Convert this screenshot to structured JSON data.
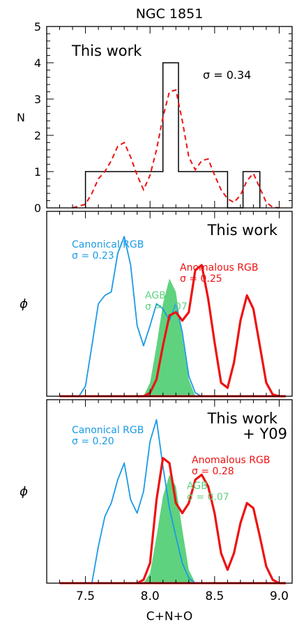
{
  "figure": {
    "title": "NGC 1851",
    "xlabel": "C+N+O",
    "x_ticks": [
      "7.5",
      "8.0",
      "8.5",
      "9.0"
    ]
  },
  "colors": {
    "black": "#000000",
    "red": "#ee1111",
    "blue": "#1a9ae6",
    "green": "#5fd27f"
  },
  "chart_data": [
    {
      "type": "bar",
      "panel": "top",
      "annotation": "This work",
      "sigma_label": "σ = 0.34",
      "ylabel": "N",
      "ylim": [
        0,
        5
      ],
      "xlim": [
        7.2,
        9.1
      ],
      "y_ticks": [
        "0",
        "1",
        "2",
        "3",
        "4",
        "5"
      ],
      "bins": [
        {
          "x0": 7.5,
          "x1": 7.6,
          "count": 1
        },
        {
          "x0": 7.6,
          "x1": 7.7,
          "count": 1
        },
        {
          "x0": 7.7,
          "x1": 7.8,
          "count": 1
        },
        {
          "x0": 7.8,
          "x1": 7.9,
          "count": 1
        },
        {
          "x0": 7.9,
          "x1": 8.0,
          "count": 1
        },
        {
          "x0": 8.0,
          "x1": 8.1,
          "count": 1
        },
        {
          "x0": 8.1,
          "x1": 8.22,
          "count": 4
        },
        {
          "x0": 8.22,
          "x1": 8.35,
          "count": 1
        },
        {
          "x0": 8.35,
          "x1": 8.47,
          "count": 1
        },
        {
          "x0": 8.47,
          "x1": 8.6,
          "count": 1
        },
        {
          "x0": 8.6,
          "x1": 8.72,
          "count": 0
        },
        {
          "x0": 8.72,
          "x1": 8.85,
          "count": 1
        }
      ],
      "kde": {
        "x": [
          7.4,
          7.5,
          7.55,
          7.6,
          7.65,
          7.7,
          7.75,
          7.8,
          7.85,
          7.9,
          7.95,
          8.0,
          8.05,
          8.1,
          8.15,
          8.2,
          8.25,
          8.3,
          8.35,
          8.4,
          8.45,
          8.5,
          8.55,
          8.6,
          8.65,
          8.7,
          8.75,
          8.8,
          8.85,
          8.9,
          8.95,
          9.0
        ],
        "y": [
          0.0,
          0.1,
          0.4,
          0.8,
          1.0,
          1.3,
          1.7,
          1.8,
          1.4,
          0.9,
          0.5,
          0.9,
          1.6,
          2.5,
          3.2,
          3.25,
          2.4,
          1.4,
          1.05,
          1.3,
          1.35,
          0.9,
          0.5,
          0.25,
          0.15,
          0.35,
          0.75,
          0.95,
          0.55,
          0.15,
          0.02,
          0.0
        ]
      }
    },
    {
      "type": "area",
      "panel": "middle",
      "annotation": "This work",
      "ylabel": "ϕ",
      "xlim": [
        7.2,
        9.1
      ],
      "ylim": [
        0,
        1.1
      ],
      "series": [
        {
          "name": "Canonical RGB",
          "sigma_label": "σ = 0.23",
          "color": "blue",
          "x": [
            7.45,
            7.5,
            7.55,
            7.6,
            7.65,
            7.7,
            7.75,
            7.8,
            7.85,
            7.9,
            7.95,
            8.0,
            8.05,
            8.1,
            8.15,
            8.2,
            8.25,
            8.3,
            8.35,
            8.4
          ],
          "y": [
            0.0,
            0.06,
            0.3,
            0.55,
            0.6,
            0.62,
            0.85,
            0.95,
            0.78,
            0.42,
            0.3,
            0.42,
            0.55,
            0.52,
            0.45,
            0.55,
            0.38,
            0.12,
            0.02,
            0.0
          ]
        },
        {
          "name": "Anomalous RGB",
          "sigma_label": "σ = 0.25",
          "color": "red",
          "x": [
            7.9,
            7.95,
            8.0,
            8.05,
            8.1,
            8.15,
            8.2,
            8.25,
            8.3,
            8.35,
            8.4,
            8.45,
            8.5,
            8.55,
            8.6,
            8.65,
            8.7,
            8.75,
            8.8,
            8.85,
            8.9,
            8.95,
            9.0,
            9.05
          ],
          "y": [
            0.0,
            0.0,
            0.02,
            0.1,
            0.3,
            0.48,
            0.5,
            0.45,
            0.5,
            0.75,
            0.78,
            0.58,
            0.32,
            0.08,
            0.05,
            0.2,
            0.45,
            0.6,
            0.52,
            0.3,
            0.08,
            0.01,
            0.0,
            0.0
          ]
        },
        {
          "name": "AGB",
          "sigma_label": "σ = 0.07",
          "color": "green",
          "x": [
            7.95,
            8.0,
            8.05,
            8.1,
            8.15,
            8.2,
            8.25,
            8.3,
            8.35
          ],
          "y": [
            0.0,
            0.08,
            0.3,
            0.55,
            0.7,
            0.62,
            0.35,
            0.1,
            0.0
          ]
        }
      ]
    },
    {
      "type": "area",
      "panel": "bottom",
      "annotation": "This work\n+ Y09",
      "ylabel": "ϕ",
      "xlim": [
        7.2,
        9.1
      ],
      "ylim": [
        0,
        1.1
      ],
      "series": [
        {
          "name": "Canonical RGB",
          "sigma_label": "σ = 0.20",
          "color": "blue",
          "x": [
            7.55,
            7.6,
            7.65,
            7.7,
            7.75,
            7.8,
            7.85,
            7.9,
            7.95,
            8.0,
            8.05,
            8.1,
            8.15,
            8.2,
            8.25,
            8.3,
            8.35,
            8.4
          ],
          "y": [
            0.0,
            0.22,
            0.4,
            0.48,
            0.62,
            0.72,
            0.5,
            0.42,
            0.55,
            0.85,
            0.98,
            0.7,
            0.45,
            0.28,
            0.12,
            0.03,
            0.0,
            0.0
          ]
        },
        {
          "name": "Anomalous RGB",
          "sigma_label": "σ = 0.28",
          "color": "red",
          "x": [
            7.9,
            7.95,
            8.0,
            8.05,
            8.1,
            8.15,
            8.2,
            8.25,
            8.3,
            8.35,
            8.4,
            8.45,
            8.5,
            8.55,
            8.6,
            8.65,
            8.7,
            8.75,
            8.8,
            8.85,
            8.9,
            8.95,
            9.0,
            9.05
          ],
          "y": [
            0.0,
            0.02,
            0.12,
            0.5,
            0.75,
            0.72,
            0.48,
            0.42,
            0.48,
            0.62,
            0.65,
            0.58,
            0.42,
            0.18,
            0.08,
            0.18,
            0.36,
            0.48,
            0.45,
            0.28,
            0.1,
            0.02,
            0.0,
            0.0
          ]
        },
        {
          "name": "AGB",
          "sigma_label": "σ = 0.07",
          "color": "green",
          "x": [
            7.95,
            8.0,
            8.05,
            8.1,
            8.15,
            8.2,
            8.25,
            8.3,
            8.35
          ],
          "y": [
            0.0,
            0.06,
            0.28,
            0.52,
            0.65,
            0.58,
            0.32,
            0.08,
            0.0
          ]
        }
      ]
    }
  ]
}
